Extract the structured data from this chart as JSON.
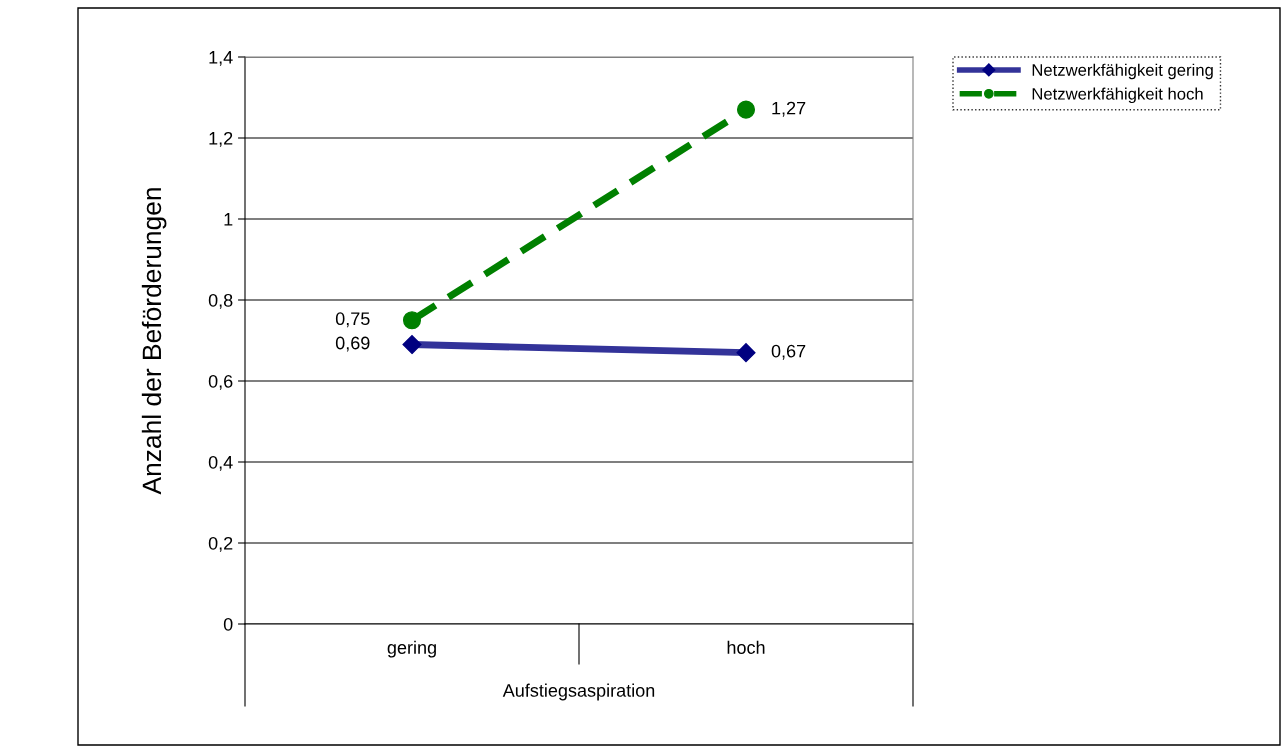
{
  "chart_data": {
    "type": "line",
    "ylabel": "Anzahl der Beförderungen",
    "xlabel": "Aufstiegsaspiration",
    "categories": [
      "gering",
      "hoch"
    ],
    "series": [
      {
        "name": "Netzwerkfähigkeit gering",
        "color": "#333399",
        "values": [
          0.69,
          0.67
        ],
        "value_labels": [
          "0,69",
          "0,67"
        ],
        "marker": "diamond",
        "line_style": "solid"
      },
      {
        "name": "Netzwerkfähigkeit hoch",
        "color": "#008000",
        "values": [
          0.75,
          1.27
        ],
        "value_labels": [
          "0,75",
          "1,27"
        ],
        "marker": "circle",
        "line_style": "dashed"
      }
    ],
    "ylim": [
      0,
      1.4
    ],
    "yticks": [
      0,
      {
        "value": 0.2,
        "label": "0,2"
      },
      {
        "value": 0.4,
        "label": "0,4"
      },
      {
        "value": 0.6,
        "label": "0,6"
      },
      {
        "value": 0.8,
        "label": "0,8"
      },
      1,
      {
        "value": 1.2,
        "label": "1,2"
      },
      {
        "value": 1.4,
        "label": "1,4"
      }
    ],
    "grid": "y",
    "legend": "top right"
  }
}
